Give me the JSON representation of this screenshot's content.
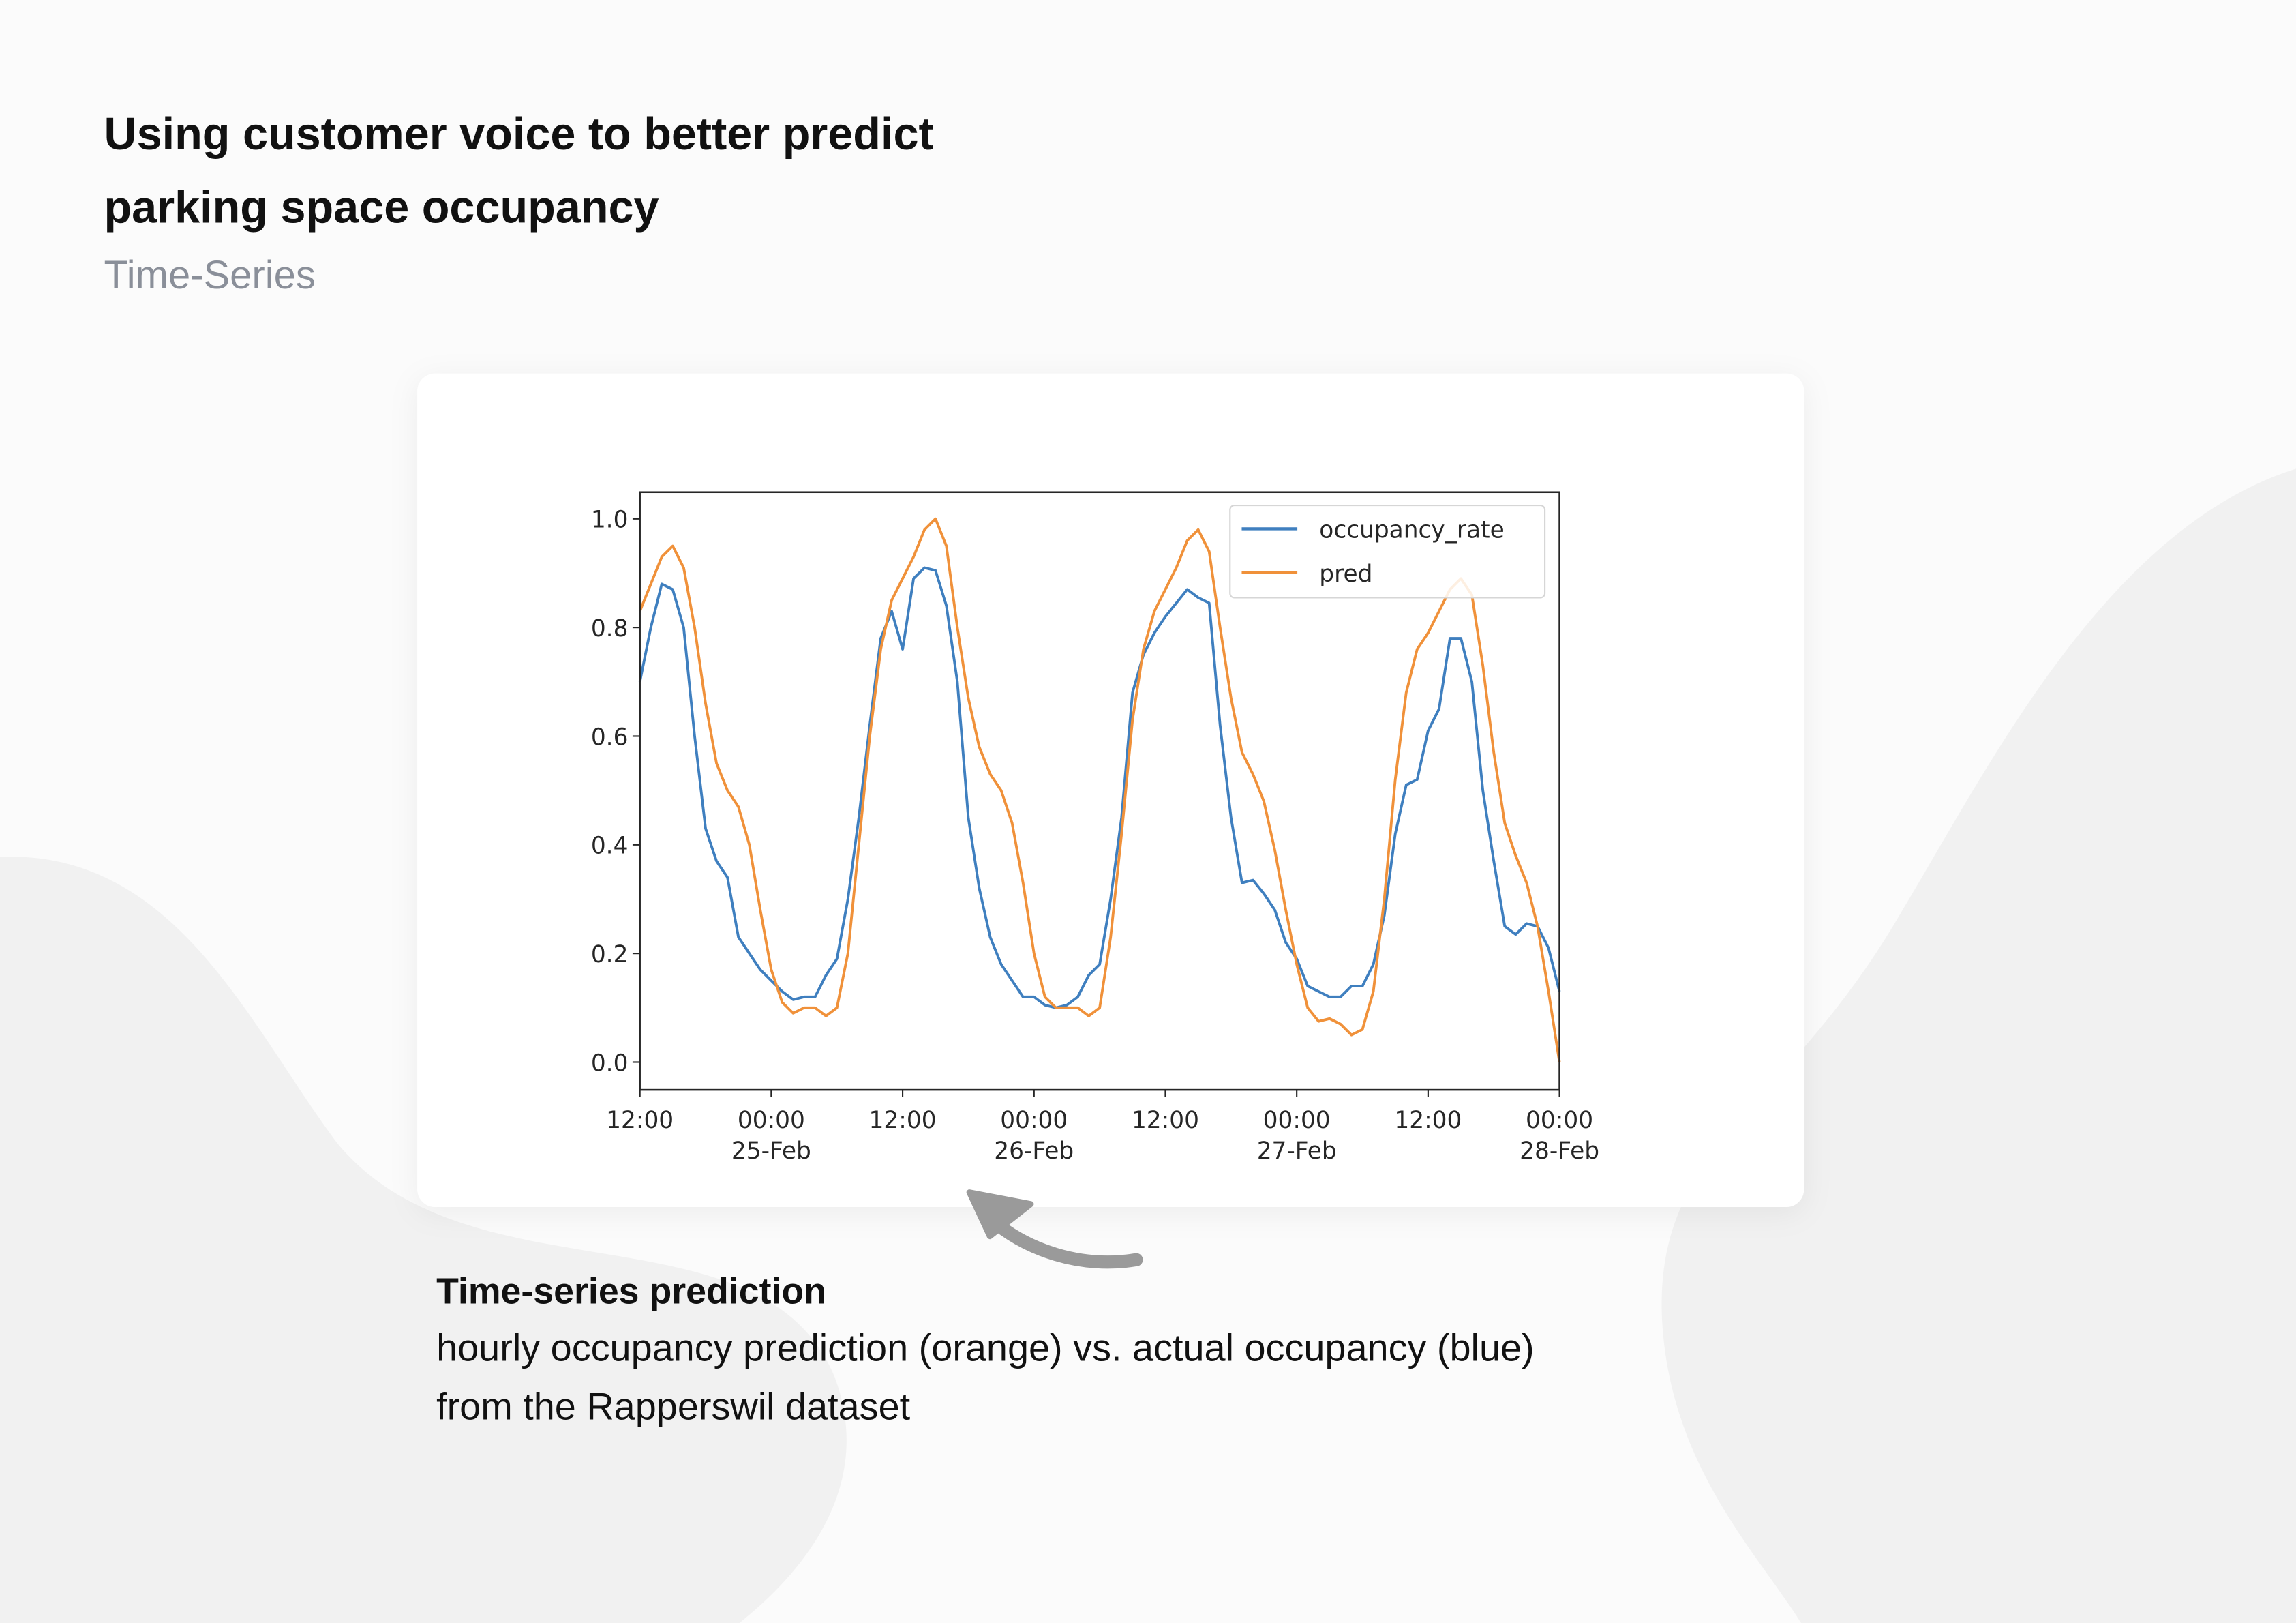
{
  "header": {
    "title_lines": [
      "Using customer voice to better predict",
      "parking space occupancy"
    ],
    "subtitle": "Time-Series"
  },
  "chart_data": {
    "type": "line",
    "categories": [
      [
        "12:00"
      ],
      null,
      null,
      null,
      null,
      null,
      null,
      null,
      null,
      null,
      null,
      null,
      [
        "00:00",
        "25-Feb"
      ],
      null,
      null,
      null,
      null,
      null,
      null,
      null,
      null,
      null,
      null,
      null,
      [
        "12:00"
      ],
      null,
      null,
      null,
      null,
      null,
      null,
      null,
      null,
      null,
      null,
      null,
      [
        "00:00",
        "26-Feb"
      ],
      null,
      null,
      null,
      null,
      null,
      null,
      null,
      null,
      null,
      null,
      null,
      [
        "12:00"
      ],
      null,
      null,
      null,
      null,
      null,
      null,
      null,
      null,
      null,
      null,
      null,
      [
        "00:00",
        "27-Feb"
      ],
      null,
      null,
      null,
      null,
      null,
      null,
      null,
      null,
      null,
      null,
      null,
      [
        "12:00"
      ],
      null,
      null,
      null,
      null,
      null,
      null,
      null,
      null,
      null,
      null,
      null,
      [
        "00:00",
        "28-Feb"
      ]
    ],
    "series": [
      {
        "name": "occupancy_rate",
        "color": "#3f7fbf",
        "values": [
          0.7,
          0.8,
          0.88,
          0.87,
          0.8,
          0.6,
          0.43,
          0.37,
          0.34,
          0.23,
          0.2,
          0.17,
          0.15,
          0.13,
          0.115,
          0.12,
          0.12,
          0.16,
          0.19,
          0.3,
          0.45,
          0.62,
          0.78,
          0.83,
          0.76,
          0.89,
          0.91,
          0.905,
          0.84,
          0.7,
          0.45,
          0.32,
          0.23,
          0.18,
          0.15,
          0.12,
          0.12,
          0.105,
          0.1,
          0.105,
          0.12,
          0.16,
          0.18,
          0.3,
          0.45,
          0.68,
          0.75,
          0.79,
          0.82,
          0.845,
          0.87,
          0.855,
          0.845,
          0.62,
          0.45,
          0.33,
          0.335,
          0.31,
          0.28,
          0.22,
          0.19,
          0.14,
          0.13,
          0.12,
          0.12,
          0.14,
          0.14,
          0.18,
          0.27,
          0.42,
          0.51,
          0.52,
          0.61,
          0.65,
          0.78,
          0.78,
          0.7,
          0.5,
          0.37,
          0.25,
          0.235,
          0.255,
          0.25,
          0.21,
          0.13
        ]
      },
      {
        "name": "pred",
        "color": "#f0913a",
        "values": [
          0.83,
          0.88,
          0.93,
          0.95,
          0.91,
          0.8,
          0.66,
          0.55,
          0.5,
          0.47,
          0.4,
          0.28,
          0.17,
          0.11,
          0.09,
          0.1,
          0.1,
          0.085,
          0.1,
          0.2,
          0.4,
          0.6,
          0.76,
          0.85,
          0.89,
          0.93,
          0.98,
          1.0,
          0.95,
          0.8,
          0.67,
          0.58,
          0.53,
          0.5,
          0.44,
          0.33,
          0.2,
          0.12,
          0.1,
          0.1,
          0.1,
          0.085,
          0.1,
          0.23,
          0.42,
          0.63,
          0.76,
          0.83,
          0.87,
          0.91,
          0.96,
          0.98,
          0.94,
          0.8,
          0.67,
          0.57,
          0.53,
          0.48,
          0.39,
          0.28,
          0.18,
          0.1,
          0.075,
          0.08,
          0.07,
          0.05,
          0.06,
          0.13,
          0.3,
          0.52,
          0.68,
          0.76,
          0.79,
          0.83,
          0.87,
          0.89,
          0.86,
          0.73,
          0.57,
          0.44,
          0.38,
          0.33,
          0.25,
          0.13,
          0.0
        ]
      }
    ],
    "ylim": [
      -0.051,
      1.049
    ],
    "yticks": [
      {
        "value": 0,
        "label": "0.0"
      },
      0.2,
      0.4,
      0.6,
      0.8,
      {
        "value": 1,
        "label": "1.0"
      }
    ],
    "grid": false,
    "legend": "upper right"
  },
  "caption": {
    "title": "Time-series prediction",
    "lines": [
      "hourly occupancy prediction (orange) vs. actual occupancy (blue)",
      "from the Rapperswil dataset"
    ]
  }
}
